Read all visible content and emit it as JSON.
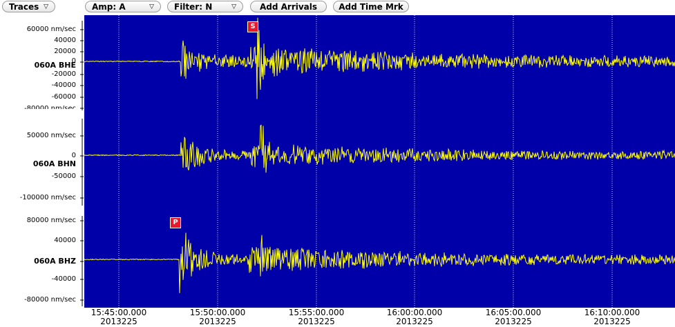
{
  "toolbar": {
    "traces_label": "Traces",
    "amp_label": "Amp: A",
    "filter_label": "Filter: N",
    "add_arrivals_label": "Add Arrivals",
    "add_time_mark_label": "Add Time Mrk",
    "dropdown_arrow": "▽"
  },
  "channels": [
    {
      "name": "060A BHE",
      "y_ticks": [
        "60000 nm/sec",
        "40000",
        "20000",
        "0",
        "-20000",
        "-40000",
        "-60000",
        "-80000 nm/sec"
      ],
      "pick": "S"
    },
    {
      "name": "060A BHN",
      "y_ticks": [
        "50000 nm/sec",
        "0",
        "-50000",
        "-100000 nm/sec"
      ],
      "pick": ""
    },
    {
      "name": "060A BHZ",
      "y_ticks": [
        "80000 nm/sec",
        "40000",
        "0",
        "-40000",
        "-80000 nm/sec"
      ],
      "pick": "P"
    }
  ],
  "x_axis": {
    "times": [
      "15:45:00.000",
      "15:50:00.000",
      "15:55:00.000",
      "16:00:00.000",
      "16:05:00.000",
      "16:10:00.000"
    ],
    "dates": [
      "2013225",
      "2013225",
      "2013225",
      "2013225",
      "2013225",
      "2013225"
    ]
  },
  "colors": {
    "plot_background": "#0000a8",
    "trace": "#ffff00",
    "gridline": "#ffffff",
    "pick_marker": "#e8182a"
  }
}
